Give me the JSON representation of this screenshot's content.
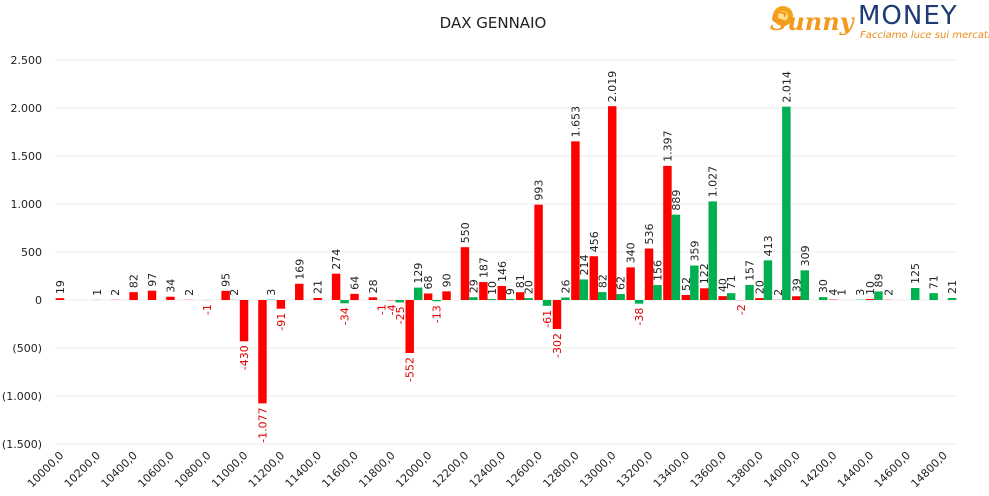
{
  "logo": {
    "brand": "Sunny",
    "brand2": "MONEY",
    "tagline": "Facciamo luce sui mercati"
  },
  "chart_data": {
    "type": "bar",
    "title": "DAX GENNAIO",
    "categories": [
      "10000,0",
      null,
      "10200,0",
      null,
      "10400,0",
      null,
      "10600,0",
      null,
      "10800,0",
      null,
      "11000,0",
      null,
      "11200,0",
      null,
      "11400,0",
      null,
      "11600,0",
      null,
      "11800,0",
      null,
      "12000,0",
      null,
      "12200,0",
      null,
      "12400,0",
      null,
      "12600,0",
      null,
      "12800,0",
      null,
      "13000,0",
      null,
      "13200,0",
      null,
      "13400,0",
      null,
      "13600,0",
      null,
      "13800,0",
      null,
      "14000,0",
      null,
      "14200,0",
      null,
      "14400,0",
      null,
      "14600,0",
      null,
      "14800,0"
    ],
    "series": [
      {
        "color": "#ff0000",
        "values": [
          19,
          null,
          1,
          2,
          82,
          97,
          34,
          2,
          -1,
          95,
          -430,
          -1077,
          -91,
          169,
          21,
          274,
          64,
          28,
          -4,
          -552,
          68,
          90,
          550,
          187,
          146,
          81,
          993,
          -302,
          1653,
          456,
          2019,
          340,
          536,
          1397,
          52,
          122,
          40,
          -2,
          20,
          2,
          39,
          null,
          4,
          null,
          10,
          2,
          null,
          null,
          null
        ],
        "value_labels": [
          "19",
          null,
          "1",
          "2",
          "82",
          "97",
          "34",
          "2",
          "-1",
          "95",
          "-430",
          "-1.077",
          "-91",
          "169",
          "21",
          "274",
          "64",
          "28",
          "-4",
          "-552",
          "68",
          "90",
          "550",
          "187",
          "146",
          "81",
          "993",
          "-302",
          "1.653",
          "456",
          "2.019",
          "340",
          "536",
          "1.397",
          "52",
          "122",
          "40",
          "-2",
          "20",
          "2",
          "39",
          null,
          "4",
          null,
          "10",
          "2",
          null,
          null,
          null
        ]
      },
      {
        "color": "#00b050",
        "values": [
          null,
          null,
          null,
          null,
          null,
          null,
          null,
          null,
          null,
          2,
          null,
          3,
          null,
          null,
          null,
          -34,
          null,
          -1,
          -25,
          129,
          -13,
          null,
          29,
          10,
          9,
          20,
          -61,
          26,
          214,
          82,
          62,
          -38,
          156,
          889,
          359,
          1027,
          71,
          157,
          413,
          2014,
          309,
          30,
          1,
          3,
          89,
          null,
          125,
          71,
          21
        ],
        "value_labels": [
          null,
          null,
          null,
          null,
          null,
          null,
          null,
          null,
          null,
          "2",
          null,
          "3",
          null,
          null,
          null,
          "-34",
          null,
          "-1",
          "-25",
          "129",
          "-13",
          null,
          "29",
          "10",
          "9",
          "20",
          "-61",
          "26",
          "214",
          "82",
          "62",
          "-38",
          "156",
          "889",
          "359",
          "1.027",
          "71",
          "157",
          "413",
          "2.014",
          "309",
          "30",
          "1",
          "3",
          "89",
          null,
          "125",
          "71",
          "21"
        ]
      }
    ],
    "ylim": [
      -1500,
      2500
    ],
    "yticks": [
      {
        "value": -1500,
        "label": "(1.500)"
      },
      {
        "value": -1000,
        "label": "(1.000)"
      },
      {
        "value": -500,
        "label": "(500)"
      },
      0,
      500,
      {
        "value": 1000,
        "label": "1.000"
      },
      {
        "value": 1500,
        "label": "1.500"
      },
      {
        "value": 2000,
        "label": "2.000"
      },
      {
        "value": 2500,
        "label": "2.500"
      }
    ],
    "grid": true
  }
}
